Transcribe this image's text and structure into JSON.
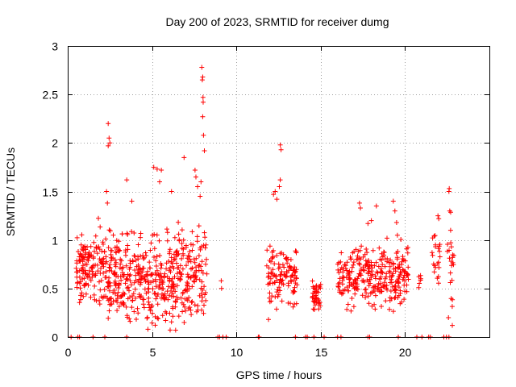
{
  "chart_data": {
    "type": "scatter",
    "title": "Day 200 of 2023, SRMTID for receiver dumg",
    "xlabel": "GPS time / hours",
    "ylabel": "SRMTID / TECUs",
    "xlim": [
      0,
      25
    ],
    "ylim": [
      0,
      3
    ],
    "xticks": [
      0,
      5,
      10,
      15,
      20
    ],
    "xtick_labels": [
      "0",
      "5",
      "10",
      "15",
      "20"
    ],
    "yticks": [
      0,
      0.5,
      1,
      1.5,
      2,
      2.5,
      3
    ],
    "ytick_labels": [
      "0",
      "0.5",
      "1",
      "1.5",
      "2",
      "2.5",
      "3"
    ],
    "grid": true,
    "marker": "+",
    "series": [
      {
        "name": "SRMTID",
        "color": "#ff0000",
        "clusters": [
          {
            "x_range": [
              0.5,
              2.3
            ],
            "y_center": 0.72,
            "y_spread": 0.22,
            "count": 150
          },
          {
            "x_range": [
              2.3,
              4.3
            ],
            "y_center": 0.6,
            "y_spread": 0.25,
            "count": 170
          },
          {
            "x_range": [
              4.3,
              6.3
            ],
            "y_center": 0.55,
            "y_spread": 0.28,
            "count": 170
          },
          {
            "x_range": [
              6.3,
              8.2
            ],
            "y_center": 0.62,
            "y_spread": 0.28,
            "count": 150
          },
          {
            "x_range": [
              11.8,
              13.6
            ],
            "y_center": 0.62,
            "y_spread": 0.2,
            "count": 120
          },
          {
            "x_range": [
              14.5,
              15.0
            ],
            "y_center": 0.42,
            "y_spread": 0.1,
            "count": 40
          },
          {
            "x_range": [
              16.0,
              18.2
            ],
            "y_center": 0.62,
            "y_spread": 0.18,
            "count": 150
          },
          {
            "x_range": [
              18.2,
              20.2
            ],
            "y_center": 0.62,
            "y_spread": 0.2,
            "count": 150
          },
          {
            "x_range": [
              20.8,
              21.0
            ],
            "y_center": 0.58,
            "y_spread": 0.05,
            "count": 6
          },
          {
            "x_range": [
              21.6,
              22.1
            ],
            "y_center": 0.8,
            "y_spread": 0.22,
            "count": 22
          },
          {
            "x_range": [
              22.5,
              22.9
            ],
            "y_center": 0.65,
            "y_spread": 0.35,
            "count": 20
          }
        ],
        "points": [
          [
            2.4,
            2.2
          ],
          [
            2.45,
            2.05
          ],
          [
            2.5,
            2.0
          ],
          [
            2.4,
            1.97
          ],
          [
            2.3,
            1.5
          ],
          [
            2.35,
            1.38
          ],
          [
            3.5,
            1.62
          ],
          [
            3.8,
            1.4
          ],
          [
            5.1,
            1.75
          ],
          [
            5.3,
            1.73
          ],
          [
            5.55,
            1.72
          ],
          [
            5.45,
            1.6
          ],
          [
            6.15,
            1.5
          ],
          [
            6.9,
            1.85
          ],
          [
            7.55,
            1.72
          ],
          [
            7.6,
            1.65
          ],
          [
            7.7,
            1.55
          ],
          [
            7.95,
            2.78
          ],
          [
            8.0,
            2.68
          ],
          [
            7.98,
            2.65
          ],
          [
            8.02,
            2.47
          ],
          [
            8.03,
            2.42
          ],
          [
            8.0,
            2.27
          ],
          [
            8.05,
            2.08
          ],
          [
            8.1,
            1.92
          ],
          [
            7.9,
            1.6
          ],
          [
            7.85,
            1.45
          ],
          [
            8.2,
            0.95
          ],
          [
            8.22,
            0.8
          ],
          [
            8.25,
            0.65
          ],
          [
            9.1,
            0.58
          ],
          [
            9.12,
            0.5
          ],
          [
            12.2,
            1.47
          ],
          [
            12.3,
            1.5
          ],
          [
            12.4,
            1.42
          ],
          [
            12.6,
            1.98
          ],
          [
            12.65,
            1.93
          ],
          [
            12.6,
            1.62
          ],
          [
            12.55,
            1.55
          ],
          [
            17.3,
            1.38
          ],
          [
            17.35,
            1.33
          ],
          [
            17.8,
            1.17
          ],
          [
            18.0,
            1.2
          ],
          [
            18.3,
            1.35
          ],
          [
            19.3,
            1.4
          ],
          [
            19.4,
            1.3
          ],
          [
            19.5,
            1.18
          ],
          [
            21.95,
            1.25
          ],
          [
            22.0,
            1.22
          ],
          [
            22.6,
            1.5
          ],
          [
            22.62,
            1.53
          ],
          [
            22.65,
            1.3
          ],
          [
            22.7,
            1.1
          ],
          [
            22.75,
            0.93
          ],
          [
            22.8,
            0.12
          ],
          [
            0.2,
            0.0
          ],
          [
            0.6,
            0.0
          ],
          [
            0.7,
            0.0
          ],
          [
            1.5,
            0.0
          ],
          [
            2.2,
            0.0
          ],
          [
            3.5,
            0.0
          ],
          [
            8.9,
            0.0
          ],
          [
            9.0,
            0.0
          ],
          [
            9.2,
            0.0
          ],
          [
            9.4,
            0.0
          ],
          [
            11.3,
            0.0
          ],
          [
            11.35,
            0.0
          ],
          [
            13.5,
            0.0
          ],
          [
            14.1,
            0.0
          ],
          [
            14.2,
            0.0
          ],
          [
            14.6,
            0.0
          ],
          [
            15.2,
            0.0
          ],
          [
            16.0,
            0.0
          ],
          [
            16.2,
            0.0
          ],
          [
            17.8,
            0.0
          ],
          [
            17.9,
            0.0
          ],
          [
            19.6,
            0.0
          ],
          [
            20.7,
            0.0
          ],
          [
            21.0,
            0.0
          ],
          [
            21.4,
            0.0
          ],
          [
            21.5,
            0.0
          ],
          [
            22.3,
            0.0
          ],
          [
            22.45,
            0.0
          ],
          [
            22.6,
            0.0
          ]
        ]
      }
    ]
  }
}
